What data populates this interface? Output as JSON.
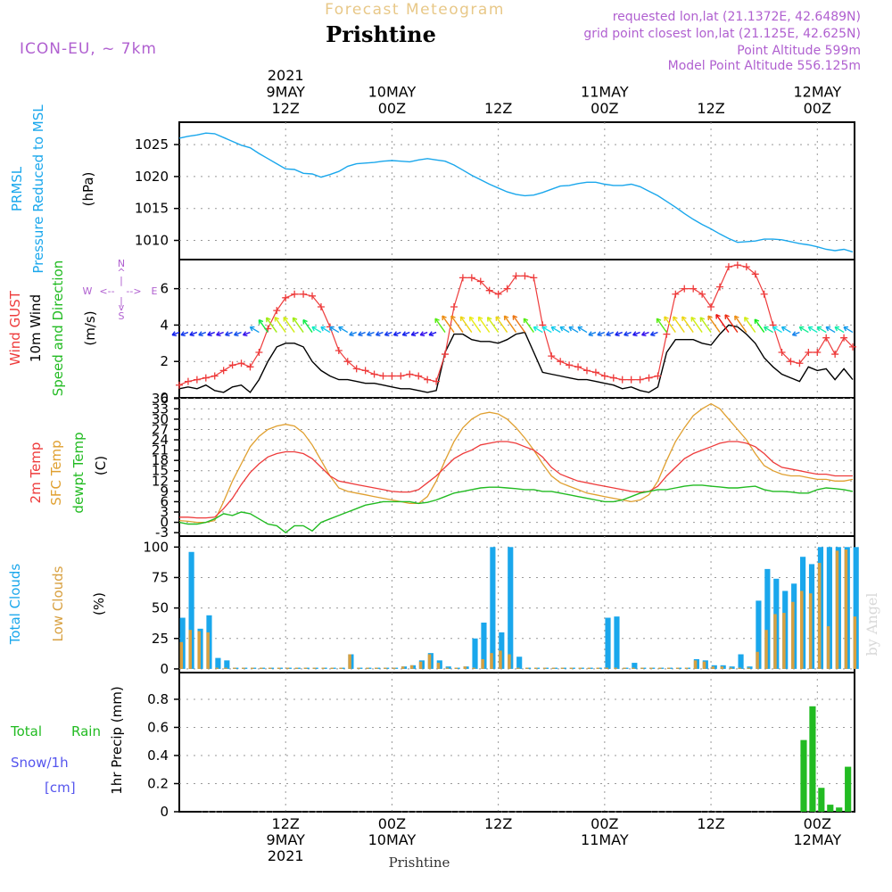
{
  "header": {
    "product": "Forecast Meteogram",
    "location": "Prishtine",
    "model": "ICON-EU, ~ 7km",
    "requested": "requested lon,lat (21.1372E, 42.6489N)",
    "grid_point": "grid point closest lon,lat (21.125E, 42.625N)",
    "point_altitude": "Point Altitude 599m",
    "model_altitude": "Model Point Altitude 556.125m",
    "bottom_label": "Prishtine",
    "credit": "by Angel"
  },
  "colors": {
    "pressure": "#1aa7ec",
    "gust": "#ee3b3b",
    "wind": "#000000",
    "direction_label": "#22bb22",
    "t2m": "#ee3b3b",
    "sfc": "#e0a030",
    "dewpt": "#22bb22",
    "total_clouds": "#1aa7ec",
    "low_clouds": "#d8a040",
    "rain": "#22bb22",
    "snow": "#5555ee",
    "header_purple": "#b060d0",
    "header_gold": "#e8c888"
  },
  "time_axis": {
    "top_ticks": [
      {
        "hour": 12,
        "lines": [
          "2021",
          "9MAY",
          "12Z"
        ]
      },
      {
        "hour": 24,
        "lines": [
          "10MAY",
          "00Z"
        ]
      },
      {
        "hour": 36,
        "lines": [
          "12Z"
        ]
      },
      {
        "hour": 48,
        "lines": [
          "11MAY",
          "00Z"
        ]
      },
      {
        "hour": 60,
        "lines": [
          "12Z"
        ]
      },
      {
        "hour": 72,
        "lines": [
          "12MAY",
          "00Z"
        ]
      }
    ],
    "bottom_ticks": [
      {
        "hour": 12,
        "lines": [
          "12Z",
          "9MAY",
          "2021"
        ]
      },
      {
        "hour": 24,
        "lines": [
          "00Z",
          "10MAY"
        ]
      },
      {
        "hour": 36,
        "lines": [
          "12Z"
        ]
      },
      {
        "hour": 48,
        "lines": [
          "00Z",
          "11MAY"
        ]
      },
      {
        "hour": 60,
        "lines": [
          "12Z"
        ]
      },
      {
        "hour": 72,
        "lines": [
          "00Z",
          "12MAY"
        ]
      }
    ]
  },
  "panels": {
    "pressure": {
      "labels": [
        "PRMSL",
        "Pressure Reduced to MSL"
      ],
      "unit": "(hPa)",
      "ticks": [
        "1010",
        "1015",
        "1020",
        "1025"
      ]
    },
    "wind": {
      "labels": [
        "Wind GUST",
        "10m Wind",
        "Speed and Direction"
      ],
      "unit": "(m/s)",
      "ticks": [
        "0",
        "2",
        "4",
        "6"
      ],
      "compass": {
        "n": "N",
        "s": "S",
        "w": "W",
        "e": "E",
        "up": "^",
        "down": "v",
        "bar": "|",
        "arrow_l": "<--",
        "arrow_r": "-->"
      }
    },
    "temperature": {
      "labels": [
        "2m Temp",
        "SFC Temp",
        "dewpt Temp"
      ],
      "unit": "(C)",
      "ticks": [
        "-3",
        "0",
        "3",
        "6",
        "9",
        "12",
        "15",
        "18",
        "21",
        "24",
        "27",
        "30",
        "33",
        "36"
      ]
    },
    "clouds": {
      "labels": [
        "Total Clouds",
        "Low Clouds"
      ],
      "unit": "(%)",
      "ticks": [
        "0",
        "25",
        "50",
        "75",
        "100"
      ]
    },
    "precip": {
      "labels": [
        "Total",
        "Rain",
        "Snow/1h",
        "[cm]"
      ],
      "unit": "1hr Precip (mm)",
      "ticks": [
        "0",
        "0.2",
        "0.4",
        "0.6",
        "0.8"
      ]
    }
  },
  "chart_data": [
    {
      "type": "line",
      "title": "PRMSL Pressure Reduced to MSL",
      "ylabel": "hPa",
      "ylim": [
        1008,
        1028
      ],
      "x_hours": [
        0,
        1,
        2,
        3,
        4,
        5,
        6,
        7,
        8,
        9,
        10,
        11,
        12,
        13,
        14,
        15,
        16,
        17,
        18,
        19,
        20,
        21,
        22,
        23,
        24,
        25,
        26,
        27,
        28,
        29,
        30,
        31,
        32,
        33,
        34,
        35,
        36,
        37,
        38,
        39,
        40,
        41,
        42,
        43,
        44,
        45,
        46,
        47,
        48,
        49,
        50,
        51,
        52,
        53,
        54,
        55,
        56,
        57,
        58,
        59,
        60,
        61,
        62,
        63,
        64,
        65,
        66,
        67,
        68,
        69,
        70,
        71,
        72,
        73,
        74,
        75,
        76
      ],
      "values": [
        1026.0,
        1026.3,
        1026.5,
        1026.8,
        1026.7,
        1026.1,
        1025.5,
        1024.9,
        1024.5,
        1023.6,
        1022.8,
        1022.0,
        1021.2,
        1021.1,
        1020.5,
        1020.4,
        1019.9,
        1020.3,
        1020.8,
        1021.6,
        1022.0,
        1022.1,
        1022.2,
        1022.4,
        1022.5,
        1022.4,
        1022.3,
        1022.6,
        1022.8,
        1022.6,
        1022.4,
        1021.8,
        1021.0,
        1020.2,
        1019.5,
        1018.8,
        1018.2,
        1017.6,
        1017.2,
        1017.0,
        1017.1,
        1017.5,
        1018.0,
        1018.5,
        1018.6,
        1018.9,
        1019.1,
        1019.1,
        1018.8,
        1018.6,
        1018.6,
        1018.8,
        1018.4,
        1017.7,
        1017.0,
        1016.1,
        1015.2,
        1014.2,
        1013.3,
        1012.5,
        1011.8,
        1011.0,
        1010.3,
        1009.7,
        1009.8,
        1009.9,
        1010.2,
        1010.2,
        1010.1,
        1009.8,
        1009.5,
        1009.3,
        1009.0,
        1008.6,
        1008.4,
        1008.6,
        1008.2
      ]
    },
    {
      "type": "line",
      "title": "Wind GUST / 10m Wind Speed and Direction",
      "ylabel": "m/s",
      "ylim": [
        0,
        7.5
      ],
      "x_hours": [
        0,
        1,
        2,
        3,
        4,
        5,
        6,
        7,
        8,
        9,
        10,
        11,
        12,
        13,
        14,
        15,
        16,
        17,
        18,
        19,
        20,
        21,
        22,
        23,
        24,
        25,
        26,
        27,
        28,
        29,
        30,
        31,
        32,
        33,
        34,
        35,
        36,
        37,
        38,
        39,
        40,
        41,
        42,
        43,
        44,
        45,
        46,
        47,
        48,
        49,
        50,
        51,
        52,
        53,
        54,
        55,
        56,
        57,
        58,
        59,
        60,
        61,
        62,
        63,
        64,
        65,
        66,
        67,
        68,
        69,
        70,
        71,
        72,
        73,
        74,
        75,
        76
      ],
      "series": [
        {
          "name": "Wind GUST",
          "values": [
            0.7,
            0.9,
            1.0,
            1.1,
            1.2,
            1.5,
            1.8,
            1.9,
            1.7,
            2.5,
            3.8,
            4.8,
            5.5,
            5.7,
            5.7,
            5.6,
            5.0,
            3.9,
            2.6,
            2.0,
            1.6,
            1.5,
            1.3,
            1.2,
            1.2,
            1.2,
            1.3,
            1.2,
            1.0,
            0.9,
            2.4,
            5.0,
            6.6,
            6.6,
            6.4,
            5.9,
            5.7,
            6.0,
            6.7,
            6.7,
            6.6,
            4.0,
            2.3,
            2.0,
            1.8,
            1.7,
            1.5,
            1.4,
            1.2,
            1.1,
            1.0,
            1.0,
            1.0,
            1.1,
            1.2,
            3.5,
            5.7,
            6.0,
            6.0,
            5.7,
            5.0,
            6.1,
            7.2,
            7.3,
            7.2,
            6.8,
            5.7,
            4.0,
            2.5,
            2.0,
            1.9,
            2.5,
            2.5,
            3.3,
            2.4,
            3.3,
            2.8
          ]
        },
        {
          "name": "10m Wind",
          "values": [
            0.5,
            0.6,
            0.5,
            0.7,
            0.4,
            0.3,
            0.6,
            0.7,
            0.3,
            1.0,
            2.0,
            2.8,
            3.0,
            3.0,
            2.8,
            2.0,
            1.5,
            1.2,
            1.0,
            1.0,
            0.9,
            0.8,
            0.8,
            0.7,
            0.6,
            0.5,
            0.5,
            0.4,
            0.3,
            0.4,
            2.5,
            3.5,
            3.5,
            3.2,
            3.1,
            3.1,
            3.0,
            3.2,
            3.5,
            3.6,
            2.5,
            1.4,
            1.3,
            1.2,
            1.1,
            1.0,
            1.0,
            0.9,
            0.8,
            0.7,
            0.5,
            0.6,
            0.4,
            0.3,
            0.6,
            2.5,
            3.2,
            3.2,
            3.2,
            3.0,
            2.9,
            3.5,
            4.0,
            3.9,
            3.5,
            3.0,
            2.2,
            1.7,
            1.3,
            1.1,
            0.9,
            1.7,
            1.5,
            1.6,
            1.0,
            1.6,
            1.0
          ]
        }
      ]
    },
    {
      "type": "line",
      "title": "2m Temp / SFC Temp / dewpt Temp",
      "ylabel": "C",
      "ylim": [
        -4,
        36
      ],
      "x_hours": [
        0,
        1,
        2,
        3,
        4,
        5,
        6,
        7,
        8,
        9,
        10,
        11,
        12,
        13,
        14,
        15,
        16,
        17,
        18,
        19,
        20,
        21,
        22,
        23,
        24,
        25,
        26,
        27,
        28,
        29,
        30,
        31,
        32,
        33,
        34,
        35,
        36,
        37,
        38,
        39,
        40,
        41,
        42,
        43,
        44,
        45,
        46,
        47,
        48,
        49,
        50,
        51,
        52,
        53,
        54,
        55,
        56,
        57,
        58,
        59,
        60,
        61,
        62,
        63,
        64,
        65,
        66,
        67,
        68,
        69,
        70,
        71,
        72,
        73,
        74,
        75,
        76
      ],
      "series": [
        {
          "name": "2m Temp",
          "values": [
            1.5,
            1.5,
            1.3,
            1.3,
            1.5,
            4.0,
            7.0,
            11.0,
            14.5,
            17.0,
            19.0,
            20.0,
            20.5,
            20.5,
            20.0,
            18.5,
            16.0,
            13.5,
            12.0,
            11.5,
            11.0,
            10.5,
            10.0,
            9.5,
            9.0,
            8.8,
            8.8,
            9.5,
            11.5,
            13.5,
            16.0,
            18.5,
            20.0,
            21.0,
            22.5,
            23.0,
            23.5,
            23.5,
            23.0,
            22.0,
            21.0,
            19.0,
            16.0,
            14.0,
            13.0,
            12.0,
            11.5,
            11.0,
            10.5,
            10.0,
            9.5,
            9.0,
            8.8,
            9.0,
            10.5,
            13.5,
            16.0,
            18.5,
            20.0,
            21.0,
            22.0,
            23.0,
            23.5,
            23.5,
            23.0,
            22.0,
            20.0,
            17.5,
            16.0,
            15.5,
            15.0,
            14.5,
            14.0,
            14.0,
            13.5,
            13.5,
            13.5
          ]
        },
        {
          "name": "SFC Temp",
          "values": [
            0.5,
            0.3,
            0.0,
            0.0,
            0.5,
            6.0,
            12.0,
            17.0,
            22.0,
            25.0,
            27.0,
            28.0,
            28.5,
            28.0,
            26.0,
            22.5,
            18.0,
            13.5,
            10.0,
            9.0,
            8.5,
            8.0,
            7.5,
            7.0,
            6.5,
            6.0,
            5.5,
            5.5,
            7.5,
            12.0,
            18.0,
            23.5,
            27.5,
            30.0,
            31.5,
            32.0,
            31.5,
            30.0,
            27.5,
            24.5,
            21.0,
            17.0,
            13.5,
            11.5,
            10.5,
            9.5,
            8.5,
            8.0,
            7.5,
            7.0,
            6.5,
            6.0,
            6.5,
            8.0,
            12.0,
            18.0,
            23.5,
            27.5,
            31.0,
            33.0,
            34.5,
            33.0,
            30.0,
            27.0,
            24.0,
            20.0,
            16.5,
            15.0,
            14.0,
            13.5,
            13.5,
            13.0,
            12.5,
            12.5,
            12.0,
            12.0,
            12.5
          ]
        },
        {
          "name": "dewpt Temp",
          "values": [
            0.0,
            -0.5,
            -0.5,
            0.0,
            1.0,
            2.5,
            2.0,
            3.0,
            2.5,
            1.0,
            -0.5,
            -1.0,
            -3.0,
            -1.0,
            -1.0,
            -2.5,
            0.0,
            1.0,
            2.0,
            3.0,
            4.0,
            5.0,
            5.5,
            6.0,
            6.0,
            6.0,
            6.0,
            5.5,
            5.8,
            6.5,
            7.5,
            8.5,
            9.0,
            9.5,
            10.0,
            10.2,
            10.2,
            10.0,
            9.8,
            9.5,
            9.5,
            9.0,
            9.0,
            8.5,
            8.0,
            7.5,
            7.0,
            6.5,
            6.0,
            6.0,
            6.5,
            7.5,
            8.5,
            9.0,
            9.5,
            9.5,
            10.0,
            10.5,
            10.8,
            10.8,
            10.5,
            10.3,
            10.0,
            10.0,
            10.3,
            10.5,
            9.5,
            9.0,
            9.0,
            8.8,
            8.5,
            8.5,
            9.5,
            10.0,
            9.8,
            9.5,
            9.0
          ]
        }
      ]
    },
    {
      "type": "bar",
      "title": "Total Clouds / Low Clouds",
      "ylabel": "%",
      "ylim": [
        0,
        100
      ],
      "x_hours": [
        0,
        1,
        2,
        3,
        4,
        5,
        6,
        7,
        8,
        9,
        10,
        11,
        12,
        13,
        14,
        15,
        16,
        17,
        18,
        19,
        20,
        21,
        22,
        23,
        24,
        25,
        26,
        27,
        28,
        29,
        30,
        31,
        32,
        33,
        34,
        35,
        36,
        37,
        38,
        39,
        40,
        41,
        42,
        43,
        44,
        45,
        46,
        47,
        48,
        49,
        50,
        51,
        52,
        53,
        54,
        55,
        56,
        57,
        58,
        59,
        60,
        61,
        62,
        63,
        64,
        65,
        66,
        67,
        68,
        69,
        70,
        71,
        72,
        73,
        74,
        75,
        76
      ],
      "series": [
        {
          "name": "Total Clouds",
          "values": [
            42,
            96,
            33,
            44,
            9,
            7,
            1,
            1,
            1,
            1,
            1,
            1,
            1,
            1,
            1,
            1,
            1,
            1,
            1,
            12,
            1,
            1,
            1,
            1,
            1,
            2,
            3,
            7,
            13,
            7,
            2,
            1,
            2,
            25,
            38,
            100,
            30,
            100,
            10,
            1,
            1,
            1,
            1,
            1,
            1,
            1,
            1,
            1,
            42,
            43,
            1,
            5,
            1,
            1,
            1,
            1,
            1,
            1,
            8,
            7,
            3,
            3,
            2,
            12,
            2,
            56,
            82,
            74,
            64,
            70,
            92,
            86,
            100,
            100,
            100,
            100,
            100
          ],
          "values_note": ""
        },
        {
          "name": "Low Clouds",
          "values": [
            22,
            32,
            31,
            30,
            1,
            1,
            1,
            1,
            1,
            1,
            1,
            1,
            1,
            1,
            1,
            1,
            1,
            1,
            1,
            12,
            1,
            1,
            1,
            1,
            1,
            2,
            3,
            6,
            12,
            5,
            1,
            1,
            2,
            1,
            8,
            13,
            15,
            12,
            1,
            1,
            1,
            1,
            1,
            1,
            1,
            1,
            1,
            1,
            1,
            1,
            1,
            1,
            1,
            1,
            1,
            1,
            1,
            1,
            7,
            6,
            2,
            2,
            1,
            1,
            1,
            14,
            32,
            45,
            46,
            55,
            64,
            62,
            87,
            35,
            97,
            98,
            43
          ]
        }
      ]
    },
    {
      "type": "bar",
      "title": "Total Rain / Snow 1hr Precip",
      "ylabel": "1hr Precip (mm)",
      "ylim": [
        0,
        0.96
      ],
      "x_hours": [
        70,
        71,
        72,
        73,
        74,
        75,
        76
      ],
      "series": [
        {
          "name": "Rain",
          "values": [
            0.51,
            0.75,
            0.17,
            0.05,
            0.03,
            0.32,
            0.0
          ]
        }
      ]
    }
  ]
}
